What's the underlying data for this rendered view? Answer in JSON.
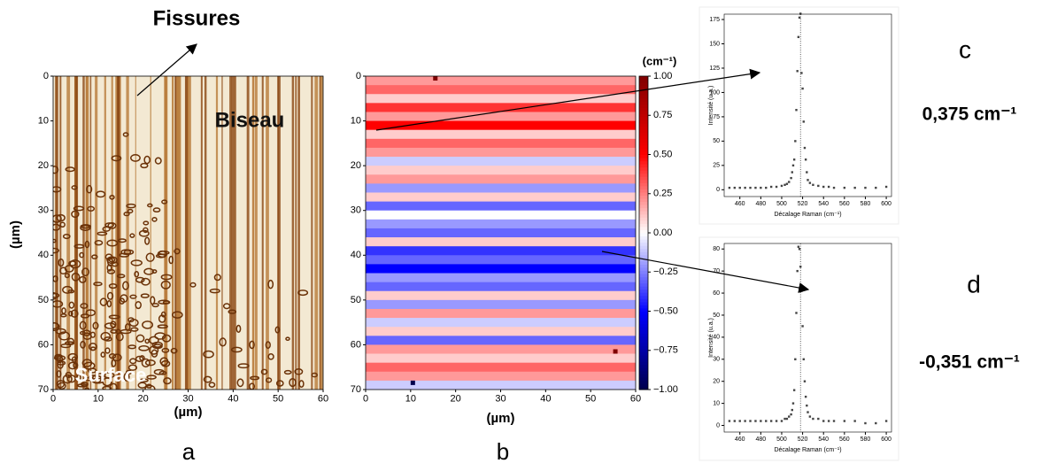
{
  "chart_data": [
    {
      "type": "image",
      "panel_label": "a",
      "x_label": "(µm)",
      "y_label": "(µm)",
      "annotations": [
        "Fissures",
        "Biseau",
        "Surface"
      ],
      "xlim": [
        0,
        60
      ],
      "ylim": [
        0,
        70
      ],
      "xticks": [
        0,
        10,
        20,
        30,
        40,
        50,
        60
      ],
      "yticks": [
        0,
        10,
        20,
        30,
        40,
        50,
        60,
        70
      ]
    },
    {
      "type": "heatmap",
      "panel_label": "b",
      "x_label": "(µm)",
      "xlim": [
        0,
        60
      ],
      "ylim": [
        0,
        70
      ],
      "xticks": [
        0,
        10,
        20,
        30,
        40,
        50,
        60
      ],
      "yticks": [
        0,
        10,
        20,
        30,
        40,
        50,
        60,
        70
      ],
      "row_values": [
        0.2,
        0.3,
        0.1,
        0.4,
        0.2,
        0.5,
        0.1,
        0.3,
        0.2,
        -0.1,
        0.1,
        0.2,
        -0.2,
        0.1,
        -0.3,
        0,
        -0.2,
        -0.3,
        0.1,
        -0.4,
        -0.3,
        -0.5,
        -0.2,
        -0.3,
        0.1,
        -0.2,
        0.2,
        -0.1,
        0.1,
        -0.3,
        0.2,
        0.1,
        0.3,
        0.2,
        -0.1
      ],
      "outliers": [
        {
          "x": 15,
          "y": 0,
          "value": 1
        },
        {
          "x": 55,
          "y": 61,
          "value": 1
        },
        {
          "x": 10,
          "y": 68,
          "value": -1
        }
      ],
      "colorbar": {
        "label": "(cm⁻¹)",
        "lim": [
          -1,
          1
        ],
        "ticks": [
          {
            "value": 1,
            "label": "1.00"
          },
          {
            "value": 0.75,
            "label": "0.75"
          },
          {
            "value": 0.5,
            "label": "0.50"
          },
          {
            "value": 0.25,
            "label": "0.25"
          },
          {
            "value": 0,
            "label": "0.00"
          },
          {
            "value": -0.25,
            "label": "−0.25"
          },
          {
            "value": -0.5,
            "label": "−0.50"
          },
          {
            "value": -0.75,
            "label": "−0.75"
          },
          {
            "value": -1,
            "label": "−1.00"
          }
        ]
      }
    },
    {
      "type": "scatter",
      "panel_label": "c",
      "annotation": "0,375 cm⁻¹",
      "x_label": "Décalage Raman (cm⁻¹)",
      "y_label": "Intensité (u.a.)",
      "xlim": [
        445,
        605
      ],
      "ylim": [
        -7,
        180.5
      ],
      "xticks": [
        460,
        480,
        500,
        520,
        540,
        560,
        580,
        600
      ],
      "yticks": [
        0,
        25,
        50,
        75,
        100,
        125,
        150,
        175
      ],
      "vline": 518,
      "x": [
        450,
        455,
        460,
        465,
        470,
        475,
        480,
        485,
        490,
        495,
        500,
        503,
        505,
        507,
        509,
        510,
        511,
        512,
        513,
        514,
        515,
        516,
        517,
        518,
        519,
        520,
        521,
        522,
        523,
        524,
        525,
        527,
        530,
        535,
        540,
        545,
        550,
        560,
        570,
        580,
        590,
        600
      ],
      "values": [
        2,
        2,
        2,
        2,
        2,
        2,
        2,
        2,
        3,
        3,
        4,
        5,
        6,
        8,
        12,
        18,
        25,
        31,
        50,
        82,
        122,
        157,
        177,
        181,
        120,
        104,
        70,
        43,
        31,
        18,
        10,
        7,
        5,
        4,
        3,
        3,
        2,
        2,
        2,
        2,
        2,
        3
      ]
    },
    {
      "type": "scatter",
      "panel_label": "d",
      "annotation": "-0,351 cm⁻¹",
      "x_label": "Décalage Raman (cm⁻¹)",
      "y_label": "Intensité (u.a.)",
      "xlim": [
        445,
        605
      ],
      "ylim": [
        -3,
        82.5
      ],
      "xticks": [
        460,
        480,
        500,
        520,
        540,
        560,
        580,
        600
      ],
      "yticks": [
        0,
        10,
        20,
        30,
        40,
        50,
        60,
        70,
        80
      ],
      "vline": 518,
      "x": [
        450,
        455,
        460,
        465,
        470,
        475,
        480,
        485,
        490,
        495,
        500,
        503,
        505,
        507,
        509,
        510,
        511,
        512,
        513,
        514,
        515,
        516,
        517,
        518,
        519,
        520,
        521,
        522,
        523,
        524,
        525,
        527,
        530,
        535,
        540,
        545,
        550,
        560,
        570,
        580,
        590,
        600
      ],
      "values": [
        2,
        2,
        2,
        2,
        2,
        2,
        2,
        2,
        2,
        2,
        2,
        3,
        3,
        4,
        5,
        7,
        10,
        16,
        30,
        51,
        70,
        81,
        80,
        72,
        61,
        45,
        30,
        20,
        13,
        9,
        6,
        4,
        3,
        3,
        2,
        2,
        2,
        2,
        2,
        1,
        1,
        2
      ]
    }
  ]
}
